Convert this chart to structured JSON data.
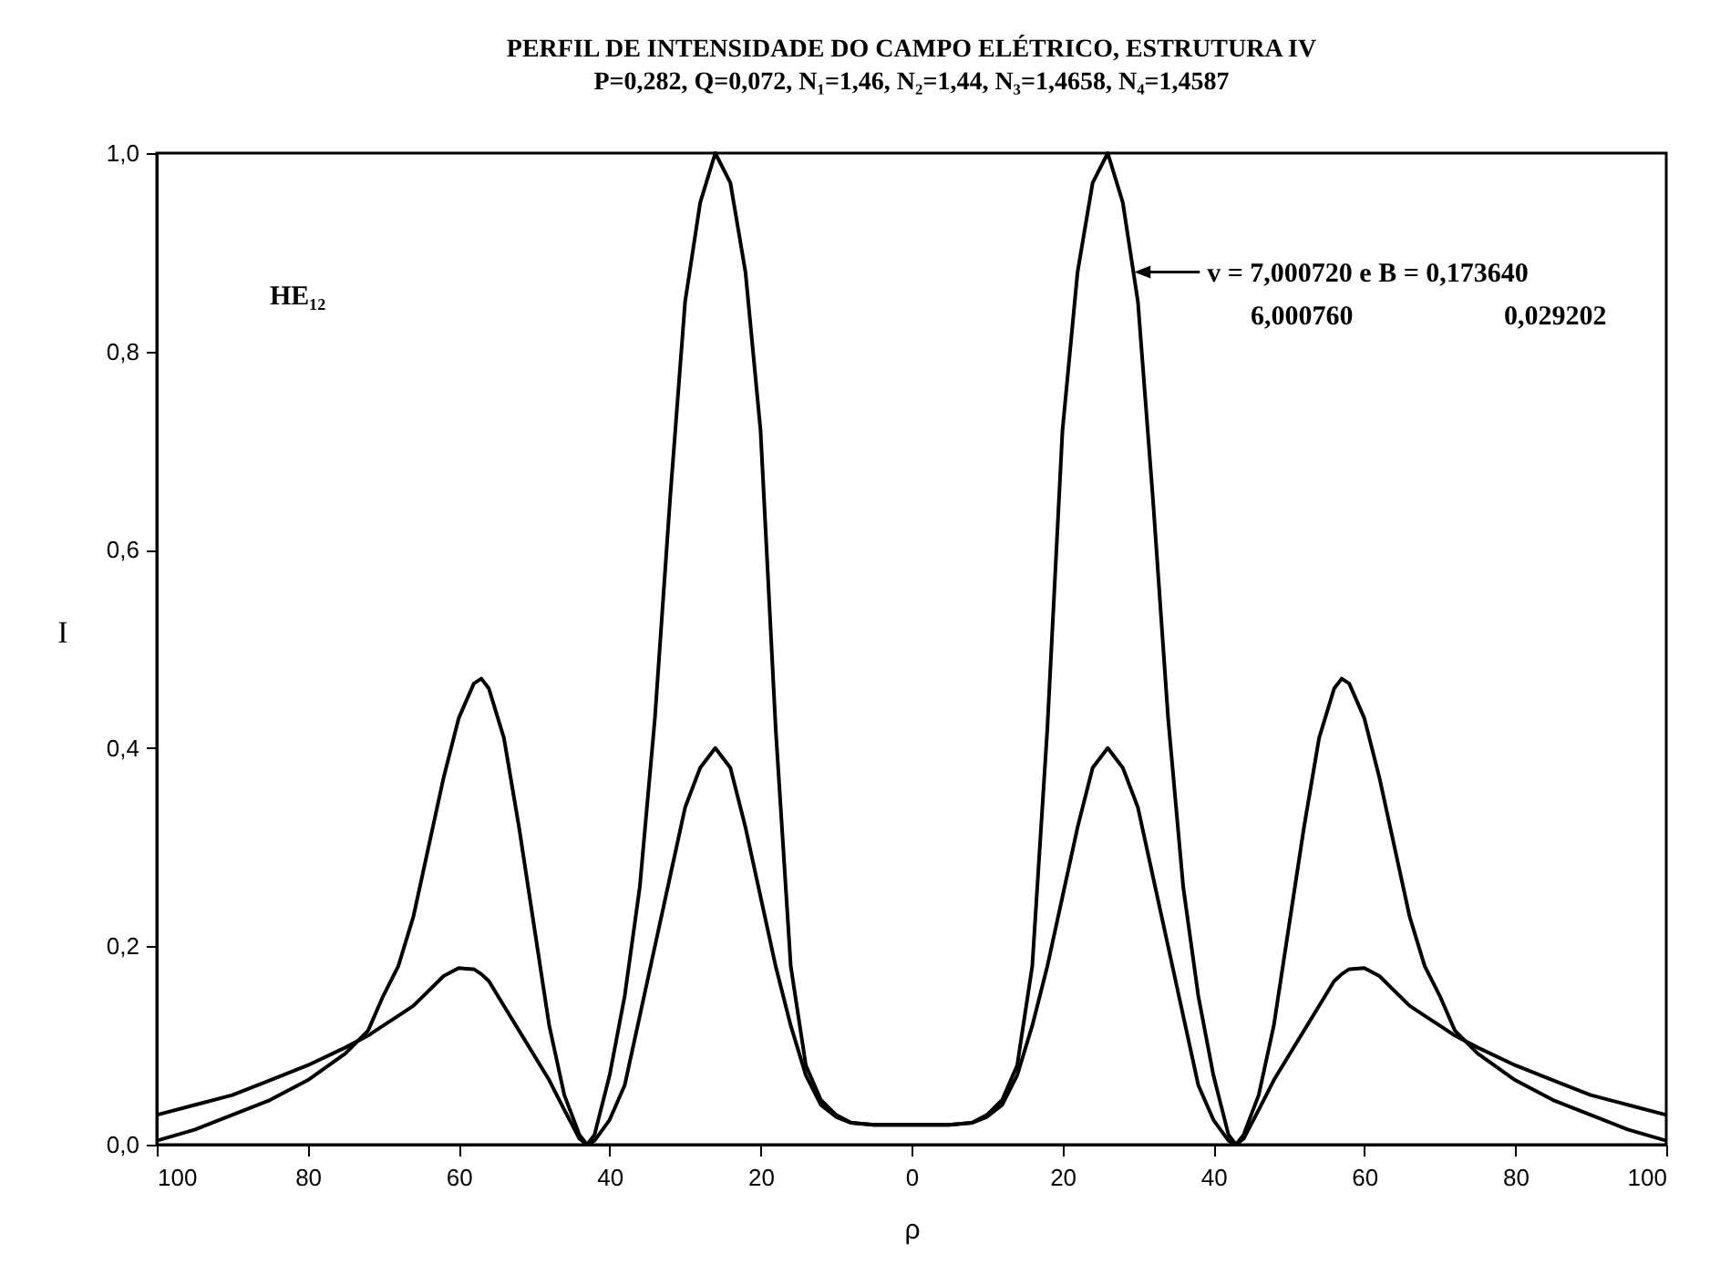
{
  "chart_data": {
    "type": "line",
    "title": "PERFIL DE INTENSIDADE DO CAMPO ELÉTRICO, ESTRUTURA IV",
    "subtitle": "P=0,282, Q=0,072, N₁=1,46, N₂=1,44, N₃=1,4658, N₄=1,4587",
    "xlabel": "ρ",
    "ylabel": "I",
    "annotations": [
      {
        "text": "v = 7,000720 e B = 0,173640",
        "x": 29.5,
        "y": 0.88
      },
      "6,000760",
      "0,029202",
      "HE₁₂"
    ],
    "x": [
      -100,
      -95,
      -90,
      -85,
      -80,
      -75,
      -72,
      -70,
      -68,
      -66,
      -64,
      -62,
      -60,
      -58,
      -57,
      -56,
      -54,
      -52,
      -50,
      -48,
      -46,
      -44,
      -43,
      -42,
      -40,
      -38,
      -36,
      -34,
      -32,
      -30,
      -28,
      -26,
      -24,
      -22,
      -20,
      -18,
      -16,
      -14,
      -12,
      -10,
      -8,
      -5,
      0,
      5,
      8,
      10,
      12,
      14,
      16,
      18,
      20,
      22,
      24,
      26,
      28,
      30,
      32,
      34,
      36,
      38,
      40,
      42,
      43,
      44,
      46,
      48,
      50,
      52,
      54,
      56,
      57,
      58,
      60,
      62,
      64,
      66,
      68,
      70,
      72,
      75,
      80,
      85,
      90,
      95,
      100
    ],
    "series": [
      {
        "color": "#000000",
        "values": [
          0.004,
          0.015,
          0.03,
          0.045,
          0.065,
          0.092,
          0.115,
          0.15,
          0.18,
          0.23,
          0.3,
          0.37,
          0.43,
          0.465,
          0.47,
          0.46,
          0.41,
          0.32,
          0.22,
          0.12,
          0.05,
          0.01,
          0,
          0.01,
          0.07,
          0.15,
          0.26,
          0.43,
          0.65,
          0.85,
          0.95,
          1.0,
          0.97,
          0.88,
          0.72,
          0.42,
          0.18,
          0.08,
          0.045,
          0.03,
          0.022,
          0.02,
          0.02,
          0.02,
          0.022,
          0.03,
          0.045,
          0.08,
          0.18,
          0.42,
          0.72,
          0.88,
          0.97,
          1.0,
          0.95,
          0.85,
          0.65,
          0.43,
          0.26,
          0.15,
          0.07,
          0.01,
          0,
          0.01,
          0.05,
          0.12,
          0.22,
          0.32,
          0.41,
          0.46,
          0.47,
          0.465,
          0.43,
          0.37,
          0.3,
          0.23,
          0.18,
          0.15,
          0.115,
          0.092,
          0.065,
          0.045,
          0.03,
          0.015,
          0.004
        ]
      },
      {
        "color": "#000000",
        "values": [
          0.03,
          0.04,
          0.05,
          0.065,
          0.08,
          0.098,
          0.11,
          0.12,
          0.13,
          0.14,
          0.155,
          0.17,
          0.178,
          0.177,
          0.172,
          0.165,
          0.14,
          0.115,
          0.09,
          0.065,
          0.035,
          0.006,
          0,
          0.004,
          0.025,
          0.06,
          0.13,
          0.2,
          0.27,
          0.34,
          0.38,
          0.4,
          0.38,
          0.32,
          0.25,
          0.18,
          0.12,
          0.07,
          0.04,
          0.028,
          0.022,
          0.02,
          0.02,
          0.02,
          0.022,
          0.028,
          0.04,
          0.07,
          0.12,
          0.18,
          0.25,
          0.32,
          0.38,
          0.4,
          0.38,
          0.34,
          0.27,
          0.2,
          0.13,
          0.06,
          0.025,
          0.004,
          0,
          0.006,
          0.035,
          0.065,
          0.09,
          0.115,
          0.14,
          0.165,
          0.172,
          0.177,
          0.178,
          0.17,
          0.155,
          0.14,
          0.13,
          0.12,
          0.11,
          0.098,
          0.08,
          0.065,
          0.05,
          0.04,
          0.03
        ]
      }
    ],
    "xlim": [
      -100,
      100
    ],
    "xticks": [
      {
        "value": -100,
        "label": "100"
      },
      {
        "value": -80,
        "label": "80"
      },
      {
        "value": -60,
        "label": "60"
      },
      {
        "value": -40,
        "label": "40"
      },
      {
        "value": -20,
        "label": "20"
      },
      0,
      20,
      40,
      60,
      80,
      100
    ],
    "ylim": [
      0,
      1
    ],
    "yticks": [
      {
        "value": 0,
        "label": "0,0"
      },
      {
        "value": 0.2,
        "label": "0,2"
      },
      {
        "value": 0.4,
        "label": "0,4"
      },
      {
        "value": 0.6,
        "label": "0,6"
      },
      {
        "value": 0.8,
        "label": "0,8"
      },
      {
        "value": 1,
        "label": "1,0"
      }
    ],
    "grid": false
  }
}
